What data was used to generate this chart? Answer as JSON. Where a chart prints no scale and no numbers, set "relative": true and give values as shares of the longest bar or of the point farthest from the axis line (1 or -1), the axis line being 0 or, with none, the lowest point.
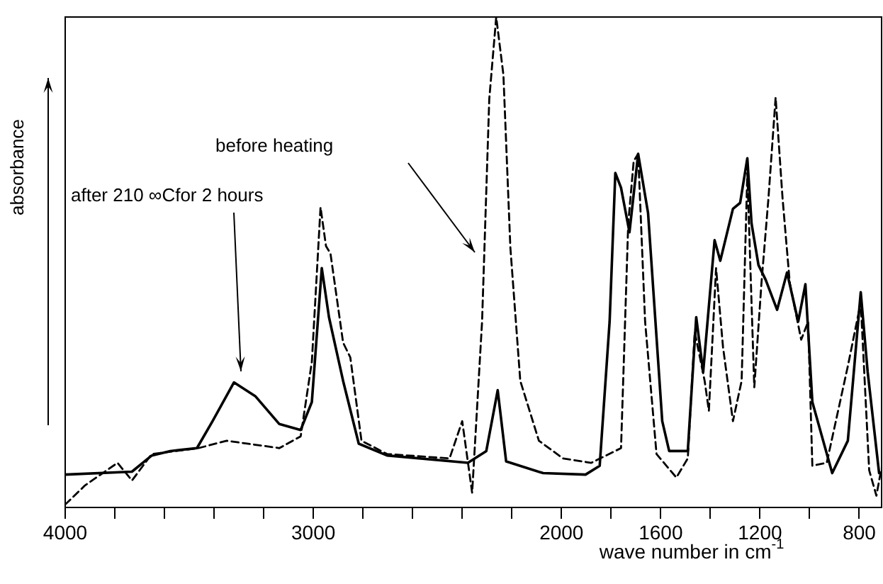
{
  "chart_data": {
    "type": "line",
    "xlabel": "wave number in cm$^{-1}$",
    "ylabel": "absorbance",
    "relative": true,
    "grid": false,
    "legend": false,
    "marker": "none",
    "xlim": [
      4000,
      710
    ],
    "xticks": [
      4000,
      {
        "value": 3800,
        "label": null
      },
      {
        "value": 3600,
        "label": null
      },
      {
        "value": 3400,
        "label": null
      },
      {
        "value": 3200,
        "label": null
      },
      3000,
      {
        "value": 2800,
        "label": null
      },
      {
        "value": 2600,
        "label": null
      },
      {
        "value": 2400,
        "label": null
      },
      {
        "value": 2200,
        "label": null
      },
      2000,
      {
        "value": 1800,
        "label": null
      },
      1600,
      {
        "value": 1400,
        "label": null
      },
      1200,
      {
        "value": 1000,
        "label": null
      },
      800
    ],
    "annotations": [
      "after 210 ∞Cfor 2 hours",
      "before heating"
    ],
    "series": [
      {
        "color": "#000000",
        "line_style": "solid",
        "x": [
          4000,
          3731,
          3651,
          3577,
          3469,
          3406,
          3320,
          3234,
          3137,
          3051,
          3006,
          2966,
          2937,
          2880,
          2817,
          2703,
          2377,
          2303,
          2257,
          2223,
          2074,
          1903,
          1846,
          1806,
          1783,
          1760,
          1726,
          1691,
          1651,
          1594,
          1566,
          1491,
          1457,
          1429,
          1383,
          1360,
          1309,
          1280,
          1251,
          1234,
          1206,
          1177,
          1131,
          1091,
          1046,
          1017,
          989,
          909,
          846,
          794,
          766,
          720
        ],
        "values": [
          0.067,
          0.073,
          0.106,
          0.115,
          0.121,
          0.176,
          0.255,
          0.227,
          0.17,
          0.158,
          0.215,
          0.488,
          0.388,
          0.258,
          0.13,
          0.106,
          0.091,
          0.115,
          0.239,
          0.094,
          0.07,
          0.067,
          0.085,
          0.379,
          0.682,
          0.652,
          0.561,
          0.721,
          0.6,
          0.176,
          0.115,
          0.115,
          0.388,
          0.276,
          0.545,
          0.503,
          0.609,
          0.621,
          0.712,
          0.579,
          0.494,
          0.464,
          0.403,
          0.479,
          0.379,
          0.455,
          0.215,
          0.07,
          0.136,
          0.439,
          0.276,
          0.07
        ]
      },
      {
        "color": "#000000",
        "line_style": "dashed",
        "x": [
          4000,
          3920,
          3789,
          3731,
          3651,
          3463,
          3349,
          3137,
          3051,
          3006,
          2971,
          2949,
          2931,
          2880,
          2851,
          2806,
          2703,
          2451,
          2400,
          2360,
          2320,
          2291,
          2263,
          2234,
          2206,
          2166,
          2091,
          1994,
          1880,
          1760,
          1731,
          1709,
          1691,
          1663,
          1617,
          1537,
          1491,
          1463,
          1423,
          1406,
          1377,
          1349,
          1309,
          1274,
          1251,
          1223,
          1194,
          1166,
          1137,
          1109,
          1080,
          1034,
          1006,
          989,
          931,
          846,
          794,
          760,
          731,
          712
        ],
        "values": [
          0.006,
          0.045,
          0.091,
          0.055,
          0.109,
          0.121,
          0.136,
          0.121,
          0.145,
          0.297,
          0.612,
          0.533,
          0.518,
          0.336,
          0.306,
          0.136,
          0.109,
          0.1,
          0.176,
          0.03,
          0.379,
          0.833,
          1,
          0.882,
          0.53,
          0.258,
          0.136,
          0.1,
          0.091,
          0.121,
          0.579,
          0.706,
          0.721,
          0.379,
          0.109,
          0.061,
          0.1,
          0.358,
          0.258,
          0.197,
          0.488,
          0.327,
          0.176,
          0.258,
          0.682,
          0.245,
          0.458,
          0.63,
          0.836,
          0.63,
          0.458,
          0.342,
          0.379,
          0.085,
          0.091,
          0.288,
          0.418,
          0.076,
          0.024,
          0.076
        ]
      }
    ]
  }
}
